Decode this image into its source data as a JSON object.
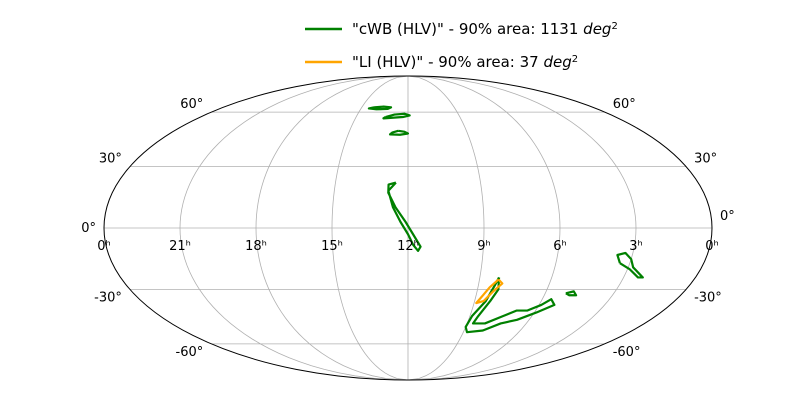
{
  "chart_data": {
    "type": "line",
    "projection": "mollweide",
    "grid": true,
    "legend_position": "top-center",
    "x_ticks": [
      "0ʰ",
      "21ʰ",
      "18ʰ",
      "15ʰ",
      "12ʰ",
      "9ʰ",
      "6ʰ",
      "3ʰ",
      "0ʰ"
    ],
    "x_tick_hours": [
      24,
      21,
      18,
      15,
      12,
      9,
      6,
      3,
      0
    ],
    "y_ticks_left": [
      {
        "label": "60°",
        "lat": 60
      },
      {
        "label": "30°",
        "lat": 30
      },
      {
        "label": "0°",
        "lat": 0
      },
      {
        "label": "-30°",
        "lat": -30
      },
      {
        "label": "-60°",
        "lat": -60
      }
    ],
    "y_ticks_right": [
      {
        "label": "60°",
        "lat": 60
      },
      {
        "label": "30°",
        "lat": 30
      },
      {
        "label": "0°",
        "lat": 0
      },
      {
        "label": "-30°",
        "lat": -30
      },
      {
        "label": "-60°",
        "lat": -60
      }
    ],
    "series": [
      {
        "name_main": "\"cWB (HLV)\" - 90% area: 1131 ",
        "name_unit": "deg",
        "name_sup": "2",
        "color": "#008000",
        "contours": [
          [
            [
              14.2,
              63
            ],
            [
              13.6,
              63.5
            ],
            [
              13.1,
              63
            ],
            [
              13.3,
              62
            ],
            [
              14.0,
              61.8
            ],
            [
              14.5,
              62.3
            ],
            [
              14.2,
              63
            ]
          ],
          [
            [
              13.3,
              57
            ],
            [
              12.8,
              58.5
            ],
            [
              12.2,
              59
            ],
            [
              11.9,
              58
            ],
            [
              12.3,
              57
            ],
            [
              13.0,
              56.5
            ],
            [
              13.4,
              56.2
            ],
            [
              13.3,
              57
            ]
          ],
          [
            [
              12.5,
              49
            ],
            [
              12.2,
              48.5
            ],
            [
              12.0,
              47.5
            ],
            [
              12.4,
              46.8
            ],
            [
              12.9,
              47
            ],
            [
              12.8,
              48
            ],
            [
              12.5,
              49
            ]
          ],
          [
            [
              12.5,
              22
            ],
            [
              12.8,
              18
            ],
            [
              12.6,
              10
            ],
            [
              12.3,
              3
            ],
            [
              12.0,
              -3
            ],
            [
              11.8,
              -8
            ],
            [
              11.6,
              -11
            ],
            [
              11.5,
              -9
            ],
            [
              11.8,
              -3
            ],
            [
              12.1,
              3
            ],
            [
              12.5,
              10
            ],
            [
              12.8,
              17
            ],
            [
              12.8,
              21
            ],
            [
              12.5,
              22
            ]
          ],
          [
            [
              8.2,
              -24
            ],
            [
              8.1,
              -30
            ],
            [
              8.3,
              -36
            ],
            [
              8.6,
              -44
            ],
            [
              8.7,
              -48
            ],
            [
              8.1,
              -48
            ],
            [
              7.4,
              -44
            ],
            [
              6.9,
              -41
            ],
            [
              6.4,
              -41
            ],
            [
              5.9,
              -38
            ],
            [
              5.6,
              -35
            ],
            [
              5.3,
              -38
            ],
            [
              5.9,
              -42
            ],
            [
              6.6,
              -46
            ],
            [
              7.3,
              -48
            ],
            [
              8.0,
              -52
            ],
            [
              8.8,
              -53
            ],
            [
              9.0,
              -50
            ],
            [
              8.9,
              -44
            ],
            [
              8.5,
              -36
            ],
            [
              8.3,
              -28
            ],
            [
              8.2,
              -24
            ]
          ],
          [
            [
              3.4,
              -17
            ],
            [
              3.6,
              -13
            ],
            [
              3.3,
              -12
            ],
            [
              3.0,
              -15
            ],
            [
              2.8,
              -19
            ],
            [
              2.2,
              -24
            ],
            [
              2.4,
              -24
            ],
            [
              2.9,
              -20
            ],
            [
              3.4,
              -17
            ]
          ],
          [
            [
              5.1,
              -32
            ],
            [
              4.8,
              -31
            ],
            [
              4.6,
              -33
            ],
            [
              4.9,
              -33
            ],
            [
              5.1,
              -32
            ]
          ]
        ]
      },
      {
        "name_main": "\"LI (HLV)\" - 90% area: 37 ",
        "name_unit": "deg",
        "name_sup": "2",
        "color": "#ffa500",
        "contours": [
          [
            [
              8.2,
              -25
            ],
            [
              8.5,
              -29
            ],
            [
              8.7,
              -33
            ],
            [
              8.9,
              -37
            ],
            [
              8.6,
              -36
            ],
            [
              8.3,
              -31
            ],
            [
              8.0,
              -27
            ],
            [
              8.2,
              -25
            ]
          ]
        ]
      }
    ]
  }
}
